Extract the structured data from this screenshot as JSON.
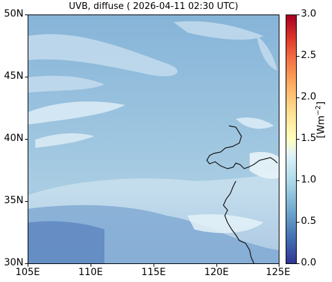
{
  "title": "UVB, diffuse ( 2026-04-11 02:30 UTC)",
  "map": {
    "lon_range": [
      105,
      125
    ],
    "lat_range": [
      30,
      50
    ],
    "x_ticks": [
      "105E",
      "110E",
      "115E",
      "120E",
      "125E"
    ],
    "y_ticks": [
      "50N",
      "45N",
      "40N",
      "35N",
      "30N"
    ],
    "layers": [
      "uvb-diffuse-field",
      "coastline"
    ]
  },
  "colorbar": {
    "label_text": "[Wm",
    "label_exp": "−2",
    "label_close": "]",
    "ticks": [
      "3.0",
      "2.5",
      "2.0",
      "1.5",
      "1.0",
      "0.5",
      "0.0"
    ],
    "range": [
      0.0,
      3.0
    ],
    "colormap": "RdYlBu_r"
  }
}
